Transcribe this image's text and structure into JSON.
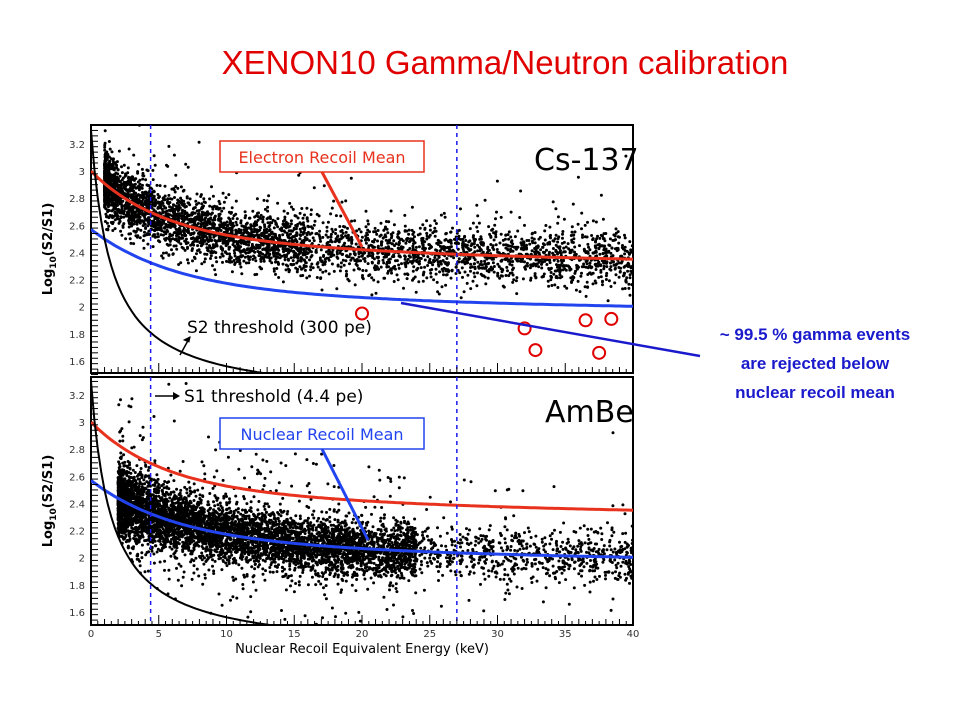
{
  "slide_title": "XENON10  Gamma/Neutron calibration",
  "note_lines": [
    "~ 99.5 % gamma events",
    "are rejected below",
    "nuclear recoil mean"
  ],
  "chart_data": {
    "type": "scatter",
    "xlabel": "Nuclear Recoil Equivalent Energy (keV)",
    "ylabel": "Log10(S2/S1)",
    "ylabel_main": "Log",
    "ylabel_sub": "10",
    "ylabel_rest": "(S2/S1)",
    "xlim": [
      0,
      40
    ],
    "ylim": [
      1.5,
      3.3
    ],
    "x_ticks": [
      "0",
      "5",
      "10",
      "15",
      "20",
      "25",
      "30",
      "35",
      "40"
    ],
    "y_ticks": [
      "1.6",
      "1.8",
      "2",
      "2.2",
      "2.4",
      "2.6",
      "2.8",
      "3",
      "3.2"
    ],
    "dashed_lines_keV": [
      4.4,
      27
    ],
    "panels": [
      {
        "name": "Cs-137",
        "label": "Cs-137",
        "mean_label": "Electron Recoil Mean",
        "threshold_label": "S2 threshold (300 pe)",
        "rejected_events_circled": [
          [
            20,
            1.95
          ],
          [
            32,
            1.84
          ],
          [
            32.8,
            1.68
          ],
          [
            36.5,
            1.9
          ],
          [
            38.4,
            1.91
          ],
          [
            37.5,
            1.66
          ]
        ]
      },
      {
        "name": "AmBe",
        "label": "AmBe",
        "mean_label": "Nuclear Recoil Mean",
        "threshold_label": "S1 threshold (4.4 pe)"
      }
    ],
    "electron_recoil_mean": {
      "x": [
        0,
        5,
        10,
        15,
        20,
        25,
        30,
        35,
        40
      ],
      "y": [
        3.0,
        2.66,
        2.53,
        2.46,
        2.42,
        2.39,
        2.37,
        2.36,
        2.35
      ]
    },
    "nuclear_recoil_mean": {
      "x": [
        0,
        5,
        10,
        15,
        20,
        25,
        30,
        35,
        40
      ],
      "y": [
        2.57,
        2.3,
        2.17,
        2.11,
        2.07,
        2.05,
        2.03,
        2.01,
        2.0
      ]
    },
    "colors": {
      "er_mean": "#e8321e",
      "nr_mean": "#2244ee",
      "annotation": "#1a1acc",
      "circles": "#e00000"
    }
  }
}
